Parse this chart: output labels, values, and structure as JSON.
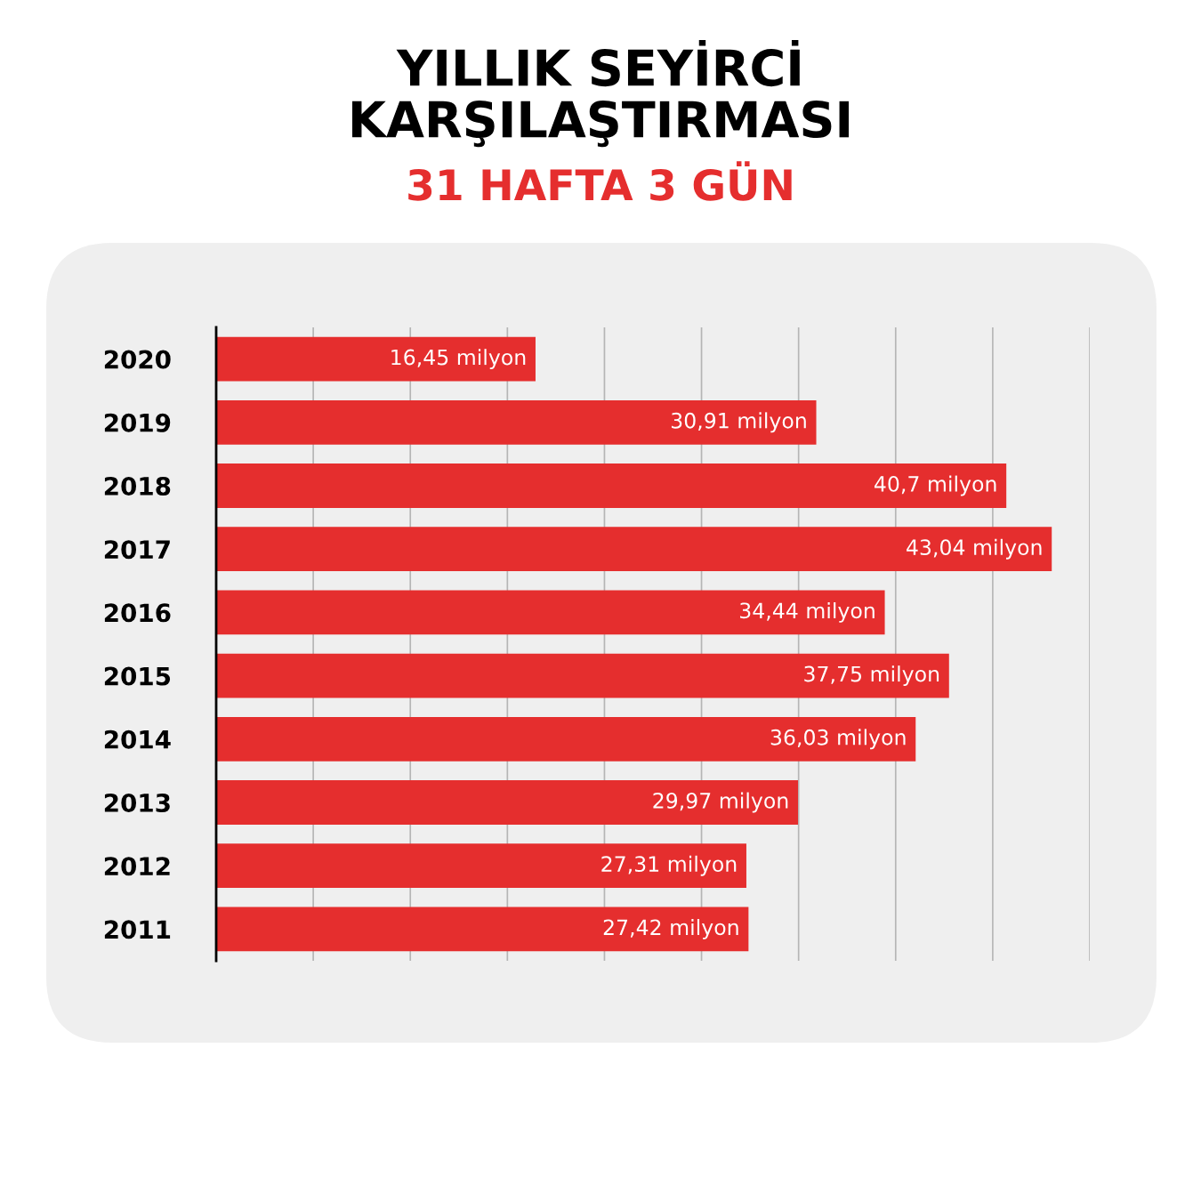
{
  "chart_data": {
    "type": "bar",
    "orientation": "horizontal",
    "title": "YILLIK SEYİRCİ\nKARŞILAŞTIRMASI",
    "subtitle": "31 HAFTA 3 GÜN",
    "categories": [
      "2020",
      "2019",
      "2018",
      "2017",
      "2016",
      "2015",
      "2014",
      "2013",
      "2012",
      "2011"
    ],
    "values": [
      16.45,
      30.91,
      40.7,
      43.04,
      34.44,
      37.75,
      36.03,
      29.97,
      27.31,
      27.42
    ],
    "value_labels": [
      "16,45 milyon",
      "30,91 milyon",
      "40,7 milyon",
      "43,04 milyon",
      "34,44 milyon",
      "37,75 milyon",
      "36,03 milyon",
      "29,97 milyon",
      "27,31 milyon",
      "27,42 milyon"
    ],
    "color": "#e52e2e",
    "xlim": [
      0,
      45
    ],
    "xticks": [
      {
        "value": 0,
        "label": null
      },
      {
        "value": 5,
        "label": null
      },
      {
        "value": 10,
        "label": null
      },
      {
        "value": 15,
        "label": null
      },
      {
        "value": 20,
        "label": null
      },
      {
        "value": 25,
        "label": null
      },
      {
        "value": 30,
        "label": null
      },
      {
        "value": 35,
        "label": null
      },
      {
        "value": 40,
        "label": null
      },
      {
        "value": 45,
        "label": null
      }
    ],
    "grid": "x",
    "tick_labels": "y"
  }
}
